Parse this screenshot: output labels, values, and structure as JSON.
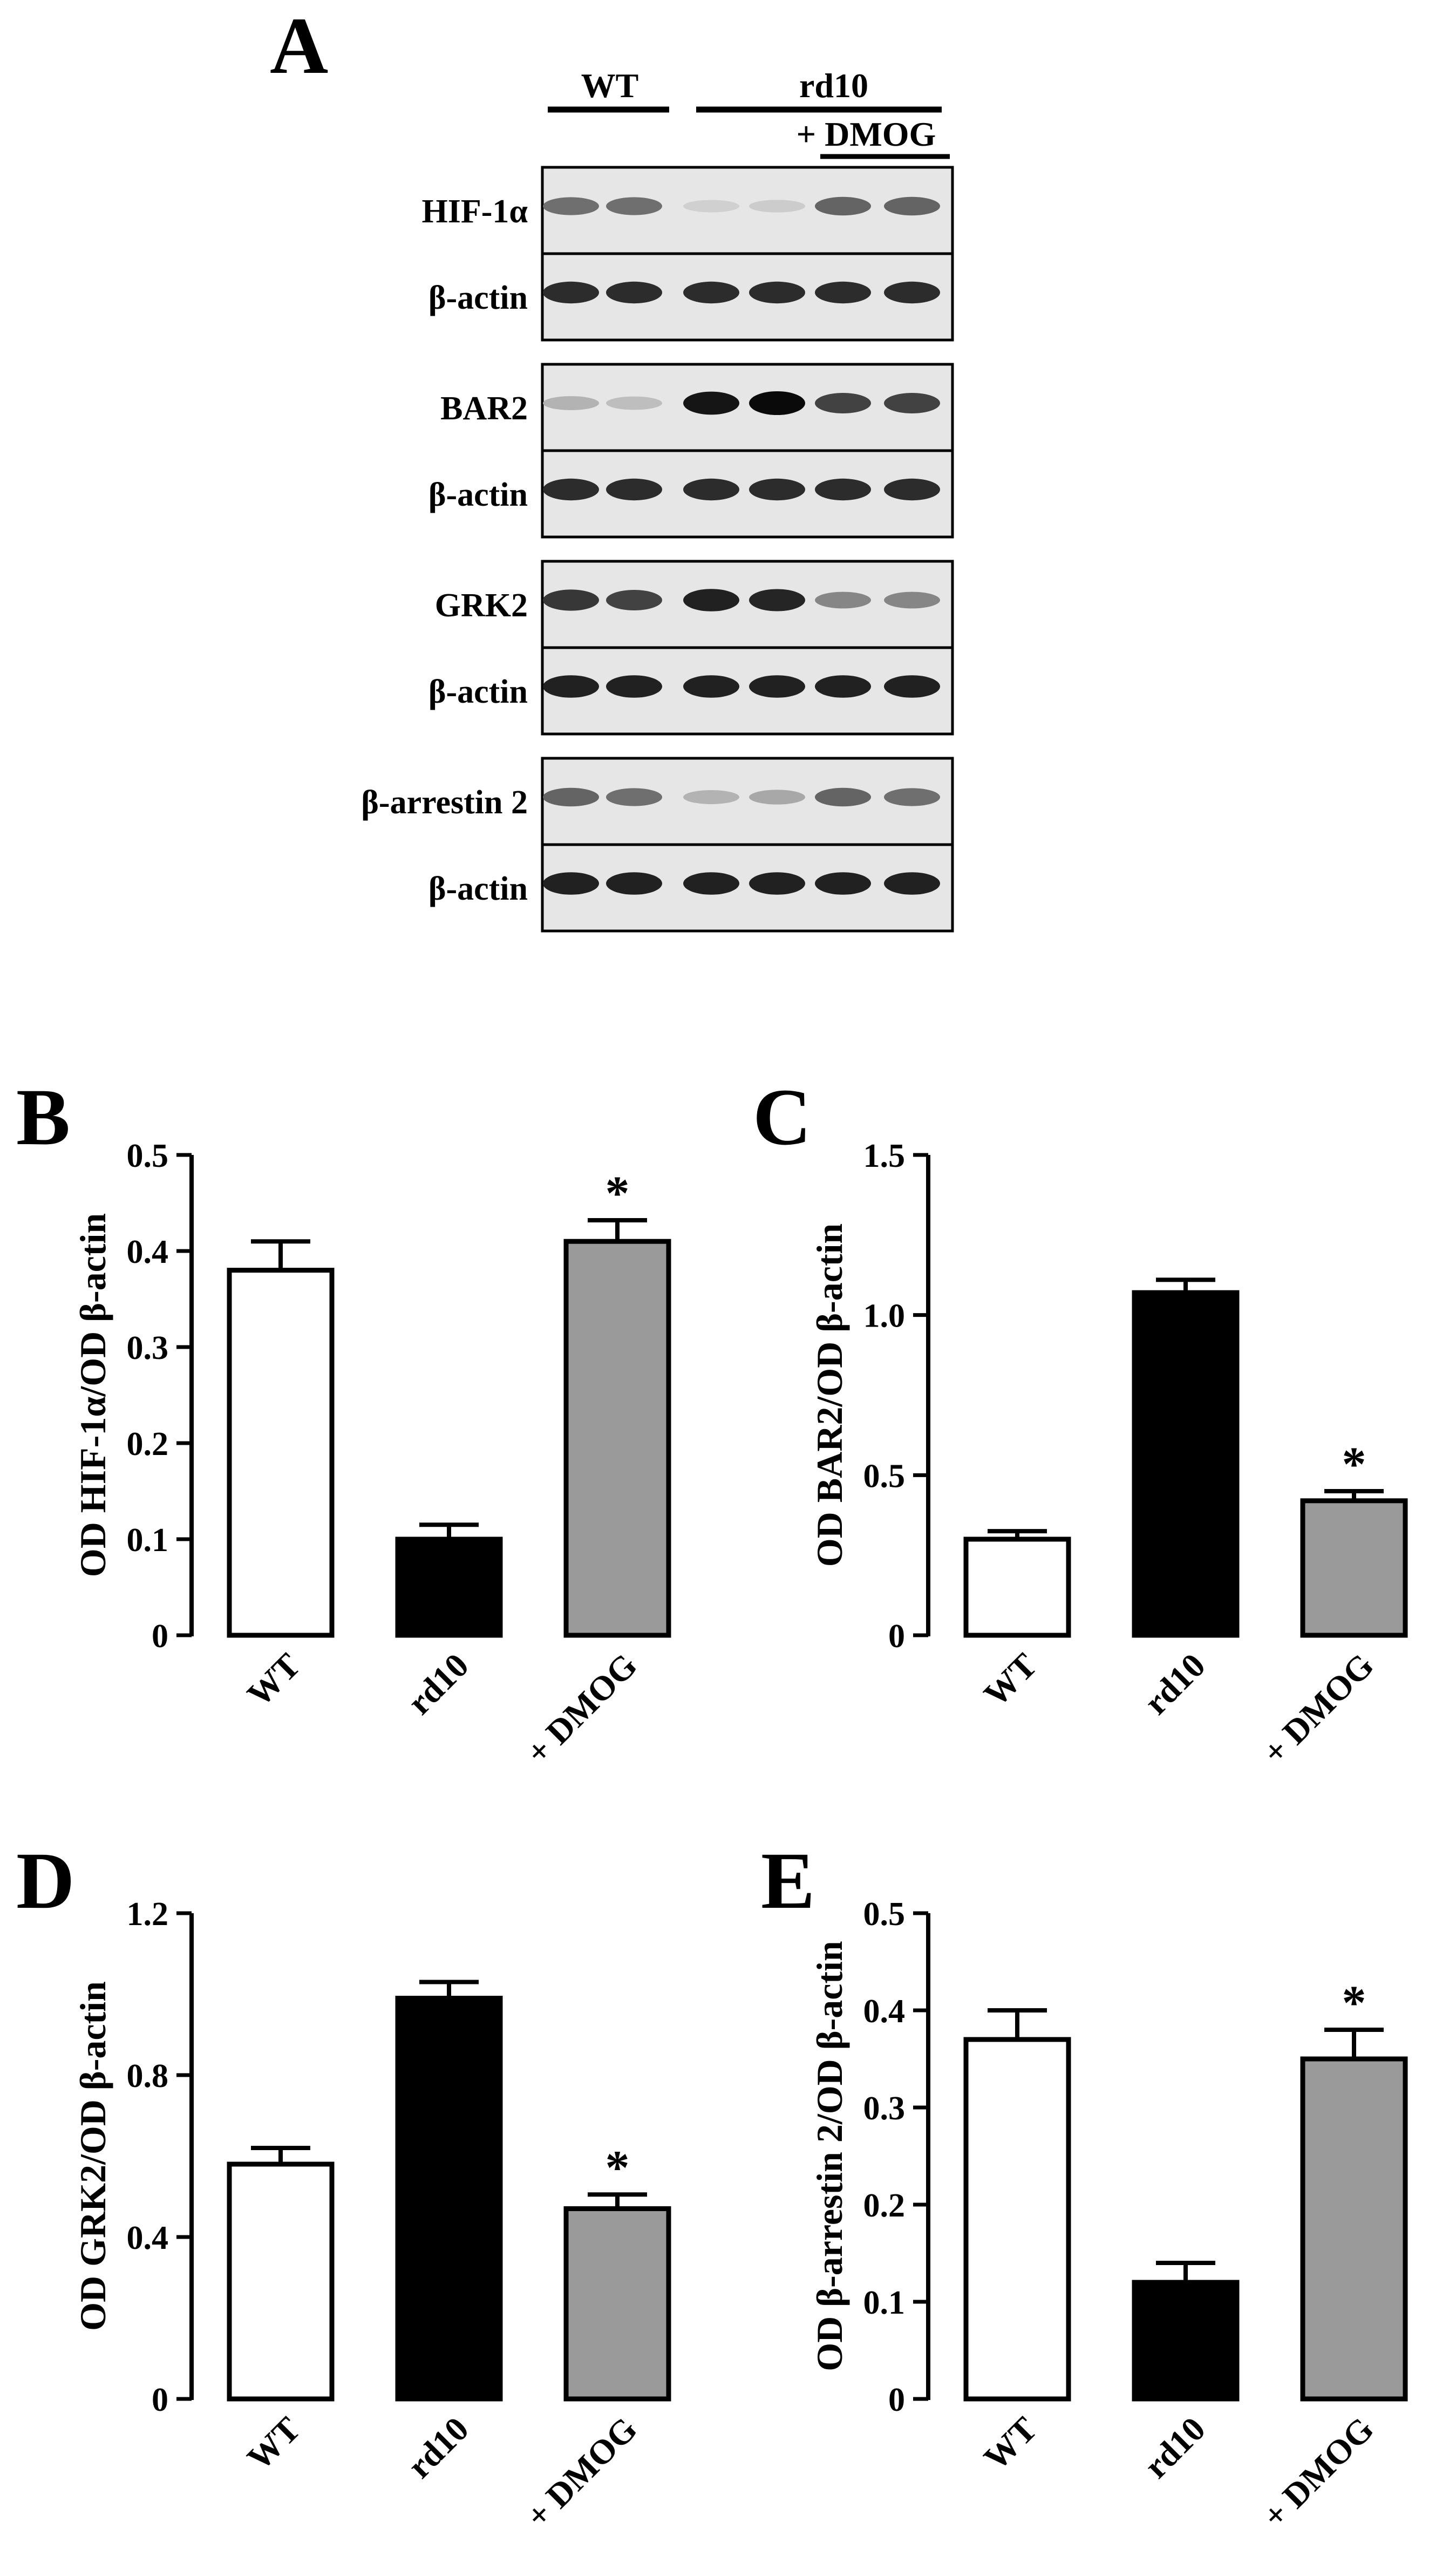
{
  "blot": {
    "panel_letter": "A",
    "group_wt": "WT",
    "group_rd10": "rd10",
    "group_dmog": "+ DMOG",
    "blocks": [
      {
        "target": "HIF-1α",
        "loading": "β-actin",
        "target_intensity": [
          0.55,
          0.55,
          0.12,
          0.14,
          0.6,
          0.6
        ],
        "loading_intensity": [
          0.85,
          0.85,
          0.85,
          0.85,
          0.85,
          0.85
        ]
      },
      {
        "target": "BAR2",
        "loading": "β-actin",
        "target_intensity": [
          0.25,
          0.2,
          0.95,
          1.0,
          0.75,
          0.75
        ],
        "loading_intensity": [
          0.85,
          0.85,
          0.85,
          0.85,
          0.85,
          0.85
        ]
      },
      {
        "target": "GRK2",
        "loading": "β-actin",
        "target_intensity": [
          0.8,
          0.75,
          0.9,
          0.88,
          0.45,
          0.45
        ],
        "loading_intensity": [
          0.9,
          0.9,
          0.9,
          0.9,
          0.9,
          0.9
        ]
      },
      {
        "target": "β-arrestin 2",
        "loading": "β-actin",
        "target_intensity": [
          0.6,
          0.55,
          0.25,
          0.3,
          0.6,
          0.55
        ],
        "loading_intensity": [
          0.9,
          0.9,
          0.9,
          0.9,
          0.9,
          0.9
        ]
      }
    ]
  },
  "chart_data": [
    {
      "type": "bar",
      "panel": "B",
      "ylabel": "OD HIF-1α/OD β-actin",
      "categories": [
        "WT",
        "rd10",
        "+ DMOG"
      ],
      "values": [
        0.38,
        0.1,
        0.41
      ],
      "errors": [
        0.03,
        0.015,
        0.022
      ],
      "ylim": [
        0,
        0.5
      ],
      "yticks": [
        "0",
        "0.1",
        "0.2",
        "0.3",
        "0.4",
        "0.5"
      ],
      "significance": [
        null,
        null,
        "*"
      ],
      "fills": [
        "#ffffff",
        "#000000",
        "#9a9a9a"
      ]
    },
    {
      "type": "bar",
      "panel": "C",
      "ylabel": "OD BAR2/OD β-actin",
      "categories": [
        "WT",
        "rd10",
        "+ DMOG"
      ],
      "values": [
        0.3,
        1.07,
        0.42
      ],
      "errors": [
        0.025,
        0.04,
        0.03
      ],
      "ylim": [
        0,
        1.5
      ],
      "yticks": [
        "0",
        "0.5",
        "1.0",
        "1.5"
      ],
      "significance": [
        null,
        null,
        "*"
      ],
      "fills": [
        "#ffffff",
        "#000000",
        "#9a9a9a"
      ]
    },
    {
      "type": "bar",
      "panel": "D",
      "ylabel": "OD GRK2/OD β-actin",
      "categories": [
        "WT",
        "rd10",
        "+ DMOG"
      ],
      "values": [
        0.58,
        0.99,
        0.47
      ],
      "errors": [
        0.04,
        0.04,
        0.035
      ],
      "ylim": [
        0,
        1.2
      ],
      "yticks": [
        "0",
        "0.4",
        "0.8",
        "1.2"
      ],
      "significance": [
        null,
        null,
        "*"
      ],
      "fills": [
        "#ffffff",
        "#000000",
        "#9a9a9a"
      ]
    },
    {
      "type": "bar",
      "panel": "E",
      "ylabel": "OD β-arrestin 2/OD β-actin",
      "categories": [
        "WT",
        "rd10",
        "+ DMOG"
      ],
      "values": [
        0.37,
        0.12,
        0.35
      ],
      "errors": [
        0.03,
        0.02,
        0.03
      ],
      "ylim": [
        0,
        0.5
      ],
      "yticks": [
        "0",
        "0.1",
        "0.2",
        "0.3",
        "0.4",
        "0.5"
      ],
      "significance": [
        null,
        null,
        "*"
      ],
      "fills": [
        "#ffffff",
        "#000000",
        "#9a9a9a"
      ]
    }
  ]
}
